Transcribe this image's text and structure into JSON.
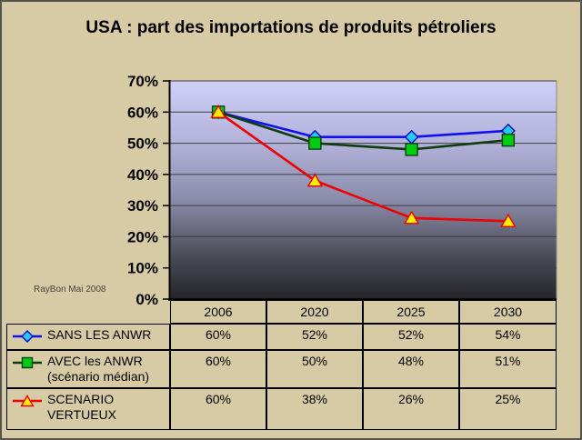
{
  "page": {
    "background_color": "#d7cba5",
    "border_color": "#56534a",
    "annotation": "RayBon Mai 2008"
  },
  "chart_data": {
    "type": "line",
    "title": "USA : part des importations de produits pétroliers",
    "categories": [
      "2006",
      "2020",
      "2025",
      "2030"
    ],
    "series": [
      {
        "name": "SANS LES ANWR",
        "values": [
          60,
          52,
          52,
          54
        ],
        "line_color": "#1111ee",
        "marker": "diamond",
        "marker_fill": "#22ccf8",
        "marker_stroke": "#0000cc"
      },
      {
        "name": "AVEC les ANWR (scénario médian)",
        "values": [
          60,
          50,
          48,
          51
        ],
        "line_color": "#0d3d0d",
        "marker": "square",
        "marker_fill": "#00cc11",
        "marker_stroke": "#0d3d0d"
      },
      {
        "name": "SCENARIO VERTUEUX",
        "values": [
          60,
          38,
          26,
          25
        ],
        "line_color": "#ee0000",
        "marker": "triangle",
        "marker_fill": "#ffee00",
        "marker_stroke": "#ee0000"
      }
    ],
    "xlabel": "",
    "ylabel": "",
    "ylim": [
      0,
      70
    ],
    "y_tick_step": 10,
    "y_tick_labels": [
      "0%",
      "10%",
      "20%",
      "30%",
      "40%",
      "50%",
      "60%",
      "70%"
    ],
    "grid": true,
    "gridline_color": "#3d3d3d",
    "legend_position": "table-left",
    "plot_bg_stops": [
      {
        "offset": "0%",
        "color": "#cfcff8"
      },
      {
        "offset": "30%",
        "color": "#b0b0d8"
      },
      {
        "offset": "55%",
        "color": "#8a8aa8"
      },
      {
        "offset": "80%",
        "color": "#4c4c58"
      },
      {
        "offset": "100%",
        "color": "#242429"
      }
    ]
  },
  "table": {
    "header": [
      "2006",
      "2020",
      "2025",
      "2030"
    ],
    "rows": [
      {
        "label": "SANS LES ANWR",
        "values": [
          "60%",
          "52%",
          "52%",
          "54%"
        ]
      },
      {
        "label": "AVEC les ANWR\n(scénario médian)",
        "values": [
          "60%",
          "50%",
          "48%",
          "51%"
        ]
      },
      {
        "label": "SCENARIO\nVERTUEUX",
        "values": [
          "60%",
          "38%",
          "26%",
          "25%"
        ]
      }
    ]
  }
}
